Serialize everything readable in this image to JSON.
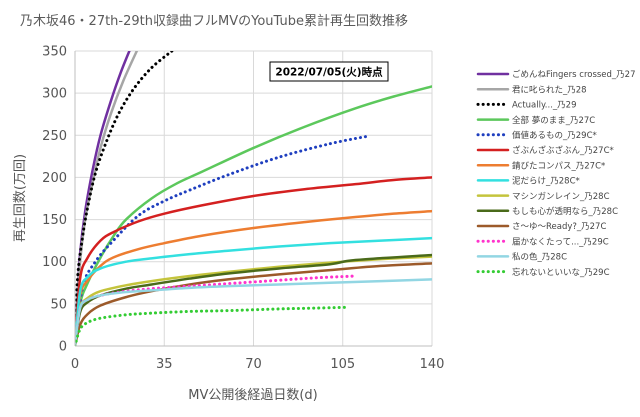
{
  "chart_data": {
    "type": "line",
    "title": "乃木坂46・27th-29th収録曲フルMVのYouTube累計再生回数推移",
    "xlabel": "MV公開後経過日数(d)",
    "ylabel": "再生回数(万回)",
    "date_box": "2022/07/05(火)時点",
    "xlim": [
      0,
      140
    ],
    "ylim": [
      0,
      350
    ],
    "xticks": [
      "0",
      "35",
      "70",
      "105",
      "140"
    ],
    "yticks": [
      "0",
      "50",
      "100",
      "150",
      "200",
      "250",
      "300",
      "350"
    ],
    "grid": true,
    "legend_position": "right",
    "series": [
      {
        "name": "ごめんねFingers crossed_乃27",
        "color": "#7030a0",
        "style": "solid",
        "x": [
          0,
          1,
          2,
          4,
          7,
          10,
          14,
          18,
          22
        ],
        "y": [
          0,
          60,
          110,
          160,
          210,
          250,
          290,
          325,
          355
        ]
      },
      {
        "name": "君に叱られた_乃28",
        "color": "#a6a6a6",
        "style": "solid",
        "x": [
          0,
          1,
          2,
          4,
          7,
          10,
          14,
          19,
          25
        ],
        "y": [
          0,
          55,
          100,
          150,
          195,
          235,
          275,
          315,
          355
        ]
      },
      {
        "name": "Actually..._乃29",
        "color": "#000000",
        "style": "dotted",
        "x": [
          0,
          1,
          3,
          5,
          8,
          12,
          17,
          23,
          30,
          38
        ],
        "y": [
          0,
          80,
          130,
          165,
          205,
          240,
          275,
          305,
          330,
          350
        ]
      },
      {
        "name": "全部 夢のまま_乃27C",
        "color": "#5cc85c",
        "style": "solid",
        "x": [
          0,
          2,
          5,
          10,
          15,
          20,
          30,
          40,
          50,
          70,
          90,
          110,
          125,
          140
        ],
        "y": [
          0,
          50,
          75,
          105,
          130,
          150,
          175,
          193,
          207,
          235,
          260,
          282,
          296,
          308
        ]
      },
      {
        "name": "価値あるもの_乃29C*",
        "color": "#1f3fbf",
        "style": "dotted",
        "x": [
          0,
          3,
          8,
          15,
          25,
          35,
          45,
          60,
          80,
          100,
          115
        ],
        "y": [
          0,
          70,
          100,
          125,
          155,
          172,
          185,
          203,
          224,
          240,
          249
        ]
      },
      {
        "name": "ざぶんざぶざぶん_乃27C*",
        "color": "#d42020",
        "style": "solid",
        "x": [
          0,
          2,
          5,
          10,
          15,
          25,
          35,
          50,
          70,
          90,
          110,
          125,
          140
        ],
        "y": [
          0,
          80,
          105,
          125,
          135,
          148,
          157,
          167,
          178,
          186,
          192,
          197,
          200
        ]
      },
      {
        "name": "錆びたコンパス_乃27C*",
        "color": "#ed7d31",
        "style": "solid",
        "x": [
          0,
          2,
          5,
          10,
          15,
          25,
          35,
          50,
          70,
          90,
          110,
          125,
          140
        ],
        "y": [
          0,
          60,
          78,
          95,
          105,
          115,
          122,
          131,
          140,
          147,
          153,
          157,
          160
        ]
      },
      {
        "name": "泥だらけ_乃28C*",
        "color": "#33e0e0",
        "style": "solid",
        "x": [
          0,
          2,
          5,
          10,
          20,
          30,
          45,
          60,
          80,
          100,
          120,
          140
        ],
        "y": [
          0,
          65,
          82,
          92,
          100,
          104,
          109,
          113,
          118,
          122,
          125,
          128
        ]
      },
      {
        "name": "マシンガンレイン_乃28C",
        "color": "#c4c43c",
        "style": "solid",
        "x": [
          0,
          2,
          5,
          10,
          20,
          30,
          45,
          60,
          80,
          100,
          120,
          140
        ],
        "y": [
          0,
          45,
          57,
          65,
          72,
          77,
          83,
          88,
          94,
          99,
          103,
          106
        ]
      },
      {
        "name": "もしも心が透明なら_乃28C",
        "color": "#4a6a1a",
        "style": "solid",
        "x": [
          0,
          2,
          5,
          10,
          20,
          30,
          45,
          60,
          80,
          100,
          110,
          140
        ],
        "y": [
          0,
          40,
          52,
          60,
          68,
          73,
          80,
          86,
          92,
          97,
          102,
          108
        ]
      },
      {
        "name": "さ～ゆ～Ready?_乃27C",
        "color": "#9c5a2a",
        "style": "solid",
        "x": [
          0,
          2,
          5,
          10,
          20,
          30,
          45,
          60,
          80,
          100,
          120,
          140
        ],
        "y": [
          0,
          25,
          38,
          48,
          58,
          65,
          73,
          79,
          85,
          90,
          95,
          98
        ]
      },
      {
        "name": "届かなくたって..._乃29C",
        "color": "#ff33cc",
        "style": "dotted",
        "x": [
          0,
          2,
          5,
          10,
          20,
          30,
          45,
          60,
          80,
          95,
          110
        ],
        "y": [
          0,
          45,
          55,
          60,
          65,
          68,
          71,
          74,
          78,
          81,
          83
        ]
      },
      {
        "name": "私の色_乃28C",
        "color": "#92d6e3",
        "style": "solid",
        "x": [
          0,
          2,
          5,
          10,
          20,
          30,
          45,
          60,
          80,
          100,
          120,
          140
        ],
        "y": [
          0,
          45,
          55,
          60,
          64,
          66,
          69,
          71,
          73,
          75,
          77,
          79
        ]
      },
      {
        "name": "忘れないといいな_乃29C",
        "color": "#33cc33",
        "style": "dotted",
        "x": [
          0,
          2,
          5,
          10,
          20,
          30,
          45,
          60,
          80,
          95,
          107
        ],
        "y": [
          0,
          20,
          28,
          33,
          37,
          39,
          41,
          42,
          44,
          45,
          46
        ]
      }
    ]
  }
}
